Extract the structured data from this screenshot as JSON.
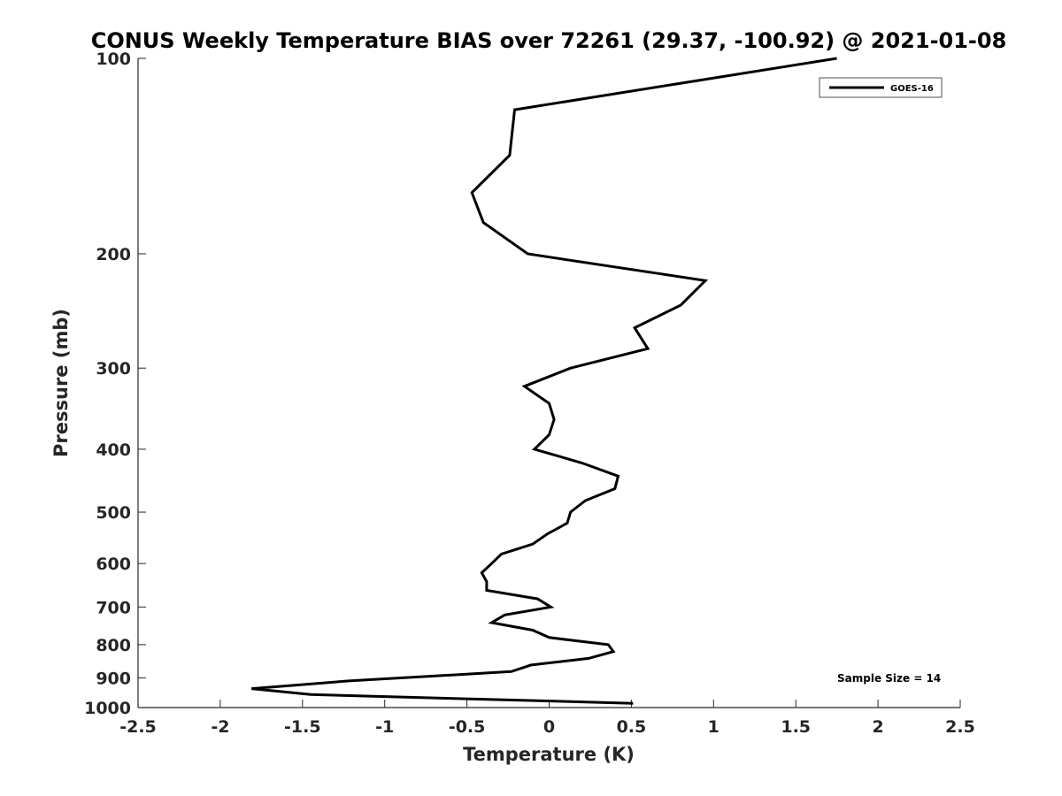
{
  "chart_data": {
    "type": "line",
    "title": "CONUS Weekly Temperature BIAS over 72261 (29.37, -100.92) @ 2021-01-08",
    "xlabel": "Temperature (K)",
    "ylabel": "Pressure (mb)",
    "xlim": [
      -2.5,
      2.5
    ],
    "ylim": [
      100,
      1000
    ],
    "y_scale": "log",
    "y_reversed": true,
    "grid": false,
    "legend_position": "top-right",
    "x_ticks": [
      "-2.5",
      "-2",
      "-1.5",
      "-1",
      "-0.5",
      "0",
      "0.5",
      "1",
      "1.5",
      "2",
      "2.5"
    ],
    "y_ticks": [
      "100",
      "200",
      "300",
      "400",
      "500",
      "600",
      "700",
      "800",
      "900",
      "1000"
    ],
    "annotation": "Sample Size = 14",
    "series": [
      {
        "name": "GOES-16",
        "color": "#000000",
        "points": [
          [
            1.75,
            100
          ],
          [
            -0.21,
            120
          ],
          [
            -0.24,
            141
          ],
          [
            -0.47,
            161
          ],
          [
            -0.4,
            179
          ],
          [
            -0.13,
            200
          ],
          [
            0.95,
            220
          ],
          [
            0.8,
            240
          ],
          [
            0.52,
            260
          ],
          [
            0.6,
            280
          ],
          [
            0.13,
            300
          ],
          [
            -0.15,
            320
          ],
          [
            0.0,
            340
          ],
          [
            0.03,
            360
          ],
          [
            0.0,
            380
          ],
          [
            -0.09,
            400
          ],
          [
            0.2,
            420
          ],
          [
            0.42,
            440
          ],
          [
            0.4,
            460
          ],
          [
            0.22,
            480
          ],
          [
            0.13,
            500
          ],
          [
            0.11,
            520
          ],
          [
            -0.01,
            540
          ],
          [
            -0.1,
            560
          ],
          [
            -0.29,
            580
          ],
          [
            -0.35,
            600
          ],
          [
            -0.41,
            620
          ],
          [
            -0.38,
            640
          ],
          [
            -0.38,
            660
          ],
          [
            -0.07,
            680
          ],
          [
            0.01,
            700
          ],
          [
            -0.27,
            720
          ],
          [
            -0.35,
            740
          ],
          [
            -0.1,
            760
          ],
          [
            0.0,
            780
          ],
          [
            0.36,
            800
          ],
          [
            0.39,
            820
          ],
          [
            0.24,
            840
          ],
          [
            -0.11,
            860
          ],
          [
            -0.23,
            880
          ],
          [
            -1.22,
            910
          ],
          [
            -1.81,
            935
          ],
          [
            -1.45,
            955
          ],
          [
            0.51,
            985
          ]
        ]
      }
    ]
  }
}
